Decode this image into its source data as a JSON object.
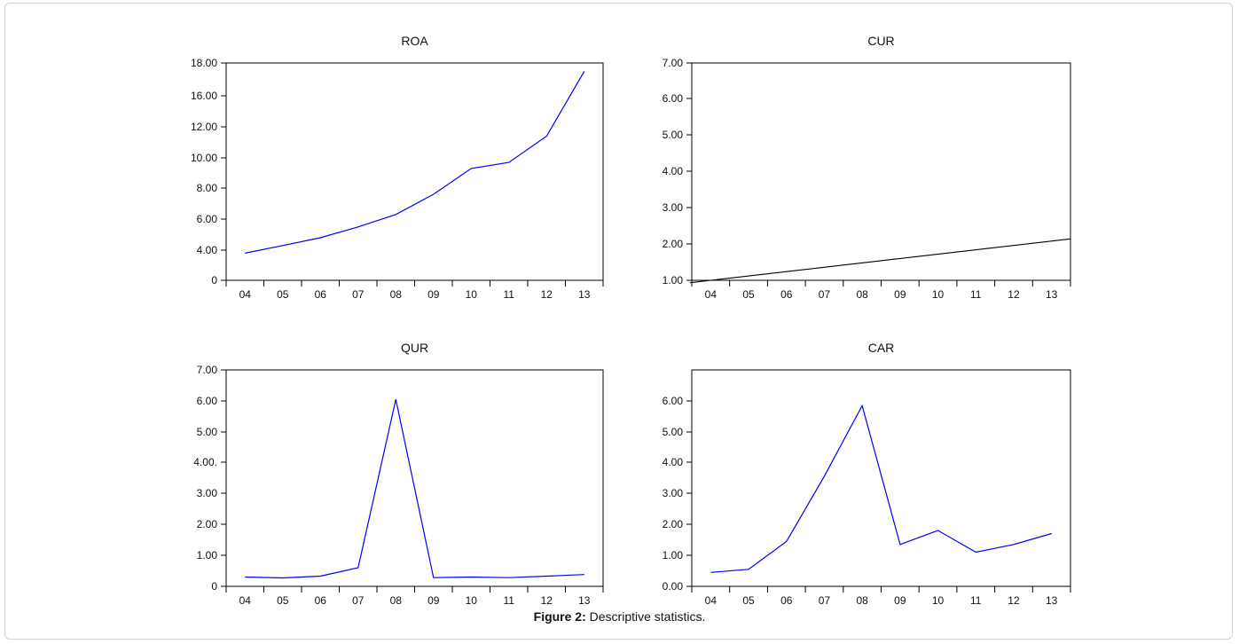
{
  "figure": {
    "caption_label": "Figure 2:",
    "caption_text": " Descriptive statistics."
  },
  "chart_data": [
    {
      "type": "line",
      "title": "ROA",
      "categories": [
        "04",
        "05",
        "06",
        "07",
        "08",
        "09",
        "10",
        "11",
        "12",
        "13"
      ],
      "yticks": [
        "0",
        "4.00",
        "6.00",
        "8.00",
        "10.00",
        "12.00",
        "16.00",
        "18.00"
      ],
      "values": [
        3.6,
        4.3,
        4.8,
        5.5,
        6.3,
        7.6,
        9.3,
        9.7,
        11.4,
        17.5
      ],
      "color": "#0000ff",
      "grid": false
    },
    {
      "type": "line",
      "title": "CUR",
      "categories": [
        "04",
        "05",
        "06",
        "07",
        "08",
        "09",
        "10",
        "11",
        "12",
        "13"
      ],
      "yticks": [
        "1.00",
        "2.00",
        "3.00",
        "4.00",
        "5.00",
        "6.00",
        "7.00"
      ],
      "values": [
        1.0,
        1.12,
        1.24,
        1.36,
        1.48,
        1.6,
        1.72,
        1.84,
        1.96,
        2.08
      ],
      "color": "#000000",
      "grid": false
    },
    {
      "type": "line",
      "title": "QUR",
      "categories": [
        "04",
        "05",
        "06",
        "07",
        "08",
        "09",
        "10",
        "11",
        "12",
        "13"
      ],
      "yticks": [
        "0",
        "1.00",
        "2.00",
        "3.00",
        "4.00.",
        "5.00",
        "6.00",
        "7.00"
      ],
      "values": [
        0.3,
        0.27,
        0.33,
        0.6,
        6.05,
        0.28,
        0.3,
        0.28,
        0.33,
        0.38
      ],
      "color": "#0000ff",
      "grid": false
    },
    {
      "type": "line",
      "title": "CAR",
      "categories": [
        "04",
        "05",
        "06",
        "07",
        "08",
        "09",
        "10",
        "11",
        "12",
        "13"
      ],
      "yticks": [
        "0.00",
        "1.00",
        "2.00",
        "3.00",
        "4.00",
        "5.00",
        "6.00"
      ],
      "values": [
        0.45,
        0.55,
        1.45,
        3.55,
        5.85,
        1.35,
        1.8,
        1.1,
        1.35,
        1.7
      ],
      "color": "#0000ff",
      "grid": false
    }
  ]
}
